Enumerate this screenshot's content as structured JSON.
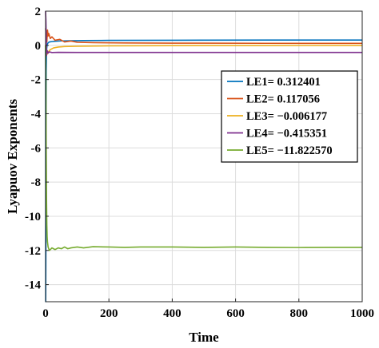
{
  "chart_data": {
    "type": "line",
    "title": "",
    "xlabel": "Time",
    "ylabel": "Lyapuov Exponents",
    "xlim": [
      0,
      1000
    ],
    "ylim": [
      -15,
      2
    ],
    "xticks": [
      0,
      200,
      400,
      600,
      800,
      1000
    ],
    "yticks": [
      2,
      0,
      -2,
      -4,
      -6,
      -8,
      -10,
      -12,
      -14
    ],
    "grid": true,
    "legend_position": "right-middle",
    "series": [
      {
        "name": "LE1= 0.312401",
        "color": "#0072BD",
        "x": [
          0,
          0.5,
          1,
          1.5,
          2,
          3,
          5,
          8,
          12,
          20,
          30,
          50,
          80,
          120,
          200,
          400,
          700,
          1000
        ],
        "values": [
          0,
          -15,
          -12,
          -6,
          -1.5,
          -0.3,
          0.05,
          0.15,
          0.2,
          0.22,
          0.24,
          0.26,
          0.27,
          0.28,
          0.29,
          0.3,
          0.31,
          0.312
        ]
      },
      {
        "name": "LE2= 0.117056",
        "color": "#D95319",
        "x": [
          0,
          2,
          4,
          6,
          8,
          10,
          15,
          20,
          30,
          45,
          60,
          80,
          100,
          150,
          250,
          400,
          700,
          1000
        ],
        "values": [
          1.0,
          0.6,
          0.2,
          0.9,
          0.55,
          0.7,
          0.4,
          0.5,
          0.3,
          0.35,
          0.2,
          0.25,
          0.18,
          0.16,
          0.14,
          0.13,
          0.12,
          0.117
        ]
      },
      {
        "name": "LE3= −0.006177",
        "color": "#EDB120",
        "x": [
          0,
          2,
          4,
          6,
          10,
          15,
          25,
          40,
          60,
          100,
          200,
          400,
          700,
          1000
        ],
        "values": [
          0,
          -0.6,
          -0.3,
          -0.5,
          -0.35,
          -0.25,
          -0.15,
          -0.1,
          -0.07,
          -0.05,
          -0.03,
          -0.015,
          -0.01,
          -0.006
        ]
      },
      {
        "name": "LE4= −0.415351",
        "color": "#7E2F8E",
        "x": [
          0,
          1,
          2,
          3,
          5,
          8,
          12,
          20,
          40,
          100,
          300,
          600,
          1000
        ],
        "values": [
          2,
          1.5,
          0.5,
          -0.6,
          -0.3,
          -0.45,
          -0.38,
          -0.42,
          -0.41,
          -0.415,
          -0.415,
          -0.415,
          -0.415
        ]
      },
      {
        "name": "LE5= −11.822570",
        "color": "#77AC30",
        "x": [
          0,
          1,
          2,
          3,
          4,
          5,
          6,
          8,
          10,
          12,
          15,
          20,
          25,
          30,
          40,
          50,
          60,
          70,
          80,
          100,
          120,
          150,
          200,
          250,
          300,
          400,
          500,
          600,
          700,
          800,
          900,
          1000
        ],
        "values": [
          0,
          -2,
          -6,
          -9,
          -10.5,
          -11.2,
          -11.5,
          -11.8,
          -11.9,
          -12.0,
          -11.95,
          -11.85,
          -11.9,
          -11.95,
          -11.85,
          -11.9,
          -11.8,
          -11.9,
          -11.85,
          -11.8,
          -11.85,
          -11.78,
          -11.8,
          -11.82,
          -11.8,
          -11.8,
          -11.82,
          -11.8,
          -11.82,
          -11.83,
          -11.82,
          -11.823
        ]
      }
    ]
  }
}
